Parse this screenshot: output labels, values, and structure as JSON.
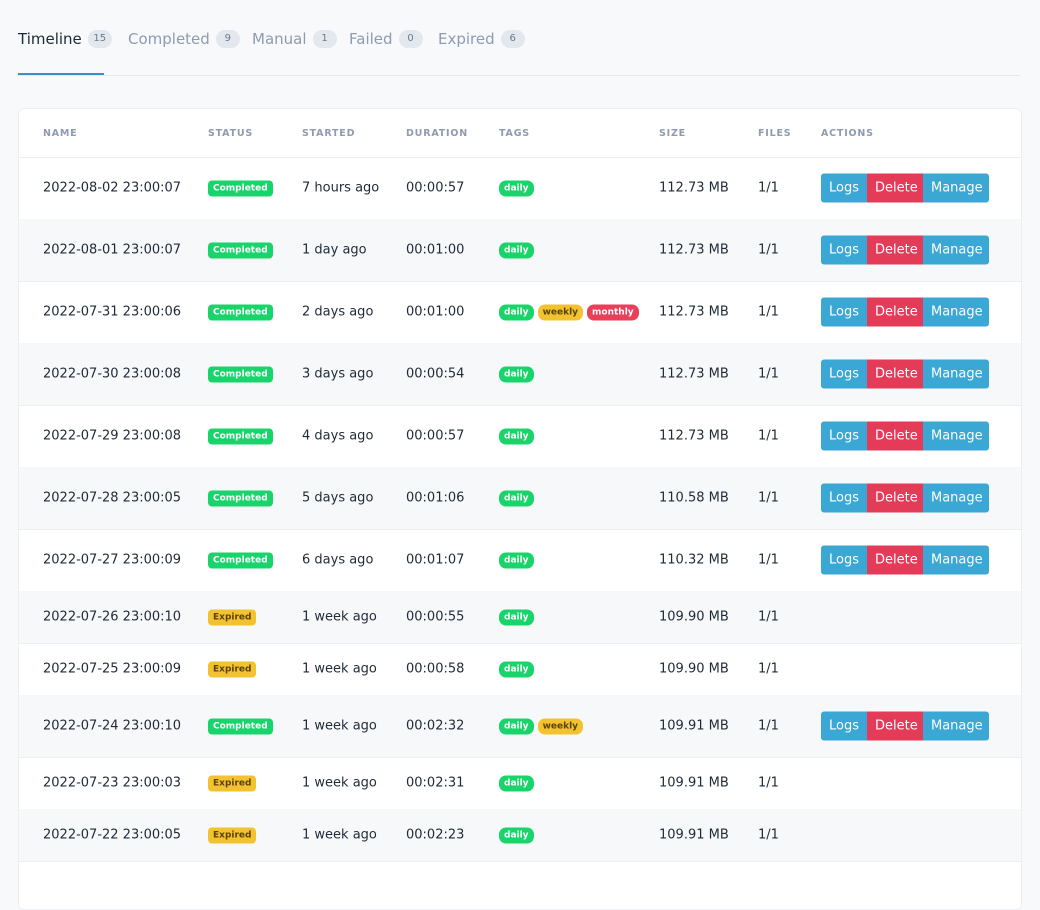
{
  "tabs": [
    {
      "label": "Timeline",
      "count": "15",
      "active": true
    },
    {
      "label": "Completed",
      "count": "9",
      "active": false
    },
    {
      "label": "Manual",
      "count": "1",
      "active": false
    },
    {
      "label": "Failed",
      "count": "0",
      "active": false
    },
    {
      "label": "Expired",
      "count": "6",
      "active": false
    }
  ],
  "columns": [
    "NAME",
    "STATUS",
    "STARTED",
    "DURATION",
    "TAGS",
    "SIZE",
    "FILES",
    "ACTIONS"
  ],
  "action_labels": {
    "logs": "Logs",
    "delete": "Delete",
    "manage": "Manage"
  },
  "rows": [
    {
      "name": "2022-08-02 23:00:07",
      "status": "Completed",
      "started": "7 hours ago",
      "duration": "00:00:57",
      "tags": [
        "daily"
      ],
      "size": "112.73 MB",
      "files": "1/1",
      "actions": true
    },
    {
      "name": "2022-08-01 23:00:07",
      "status": "Completed",
      "started": "1 day ago",
      "duration": "00:01:00",
      "tags": [
        "daily"
      ],
      "size": "112.73 MB",
      "files": "1/1",
      "actions": true
    },
    {
      "name": "2022-07-31 23:00:06",
      "status": "Completed",
      "started": "2 days ago",
      "duration": "00:01:00",
      "tags": [
        "daily",
        "weekly",
        "monthly"
      ],
      "size": "112.73 MB",
      "files": "1/1",
      "actions": true
    },
    {
      "name": "2022-07-30 23:00:08",
      "status": "Completed",
      "started": "3 days ago",
      "duration": "00:00:54",
      "tags": [
        "daily"
      ],
      "size": "112.73 MB",
      "files": "1/1",
      "actions": true
    },
    {
      "name": "2022-07-29 23:00:08",
      "status": "Completed",
      "started": "4 days ago",
      "duration": "00:00:57",
      "tags": [
        "daily"
      ],
      "size": "112.73 MB",
      "files": "1/1",
      "actions": true
    },
    {
      "name": "2022-07-28 23:00:05",
      "status": "Completed",
      "started": "5 days ago",
      "duration": "00:01:06",
      "tags": [
        "daily"
      ],
      "size": "110.58 MB",
      "files": "1/1",
      "actions": true
    },
    {
      "name": "2022-07-27 23:00:09",
      "status": "Completed",
      "started": "6 days ago",
      "duration": "00:01:07",
      "tags": [
        "daily"
      ],
      "size": "110.32 MB",
      "files": "1/1",
      "actions": true
    },
    {
      "name": "2022-07-26 23:00:10",
      "status": "Expired",
      "started": "1 week ago",
      "duration": "00:00:55",
      "tags": [
        "daily"
      ],
      "size": "109.90 MB",
      "files": "1/1",
      "actions": false
    },
    {
      "name": "2022-07-25 23:00:09",
      "status": "Expired",
      "started": "1 week ago",
      "duration": "00:00:58",
      "tags": [
        "daily"
      ],
      "size": "109.90 MB",
      "files": "1/1",
      "actions": false
    },
    {
      "name": "2022-07-24 23:00:10",
      "status": "Completed",
      "started": "1 week ago",
      "duration": "00:02:32",
      "tags": [
        "daily",
        "weekly"
      ],
      "size": "109.91 MB",
      "files": "1/1",
      "actions": true
    },
    {
      "name": "2022-07-23 23:00:03",
      "status": "Expired",
      "started": "1 week ago",
      "duration": "00:02:31",
      "tags": [
        "daily"
      ],
      "size": "109.91 MB",
      "files": "1/1",
      "actions": false
    },
    {
      "name": "2022-07-22 23:00:05",
      "status": "Expired",
      "started": "1 week ago",
      "duration": "00:02:23",
      "tags": [
        "daily"
      ],
      "size": "109.91 MB",
      "files": "1/1",
      "actions": false
    }
  ]
}
